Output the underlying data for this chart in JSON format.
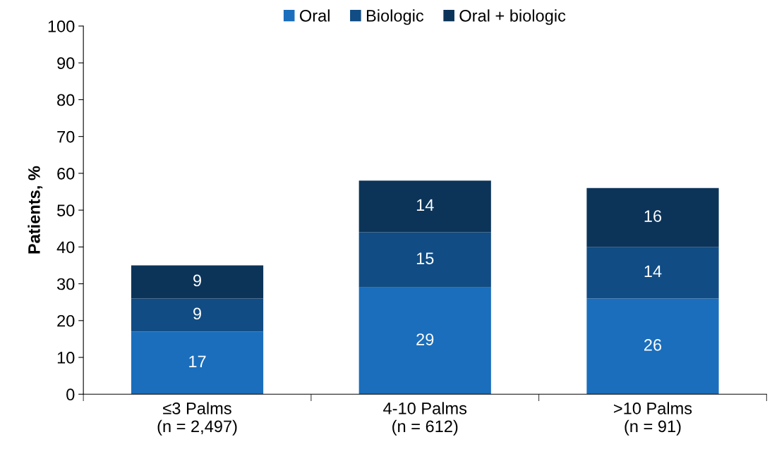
{
  "chart_data": {
    "type": "bar",
    "stacked": true,
    "ylabel": "Patients, %",
    "categories": [
      "≤3 Palms\n(n = 2,497)",
      "4-10 Palms\n(n = 612)",
      ">10 Palms\n(n = 91)"
    ],
    "series": [
      {
        "name": "Oral",
        "color": "#1a6ebc",
        "values": [
          17,
          29,
          26
        ]
      },
      {
        "name": "Biologic",
        "color": "#114c84",
        "values": [
          9,
          15,
          14
        ]
      },
      {
        "name": "Oral + biologic",
        "color": "#0c3459",
        "values": [
          9,
          14,
          16
        ]
      }
    ],
    "ylim": [
      0,
      100
    ],
    "yticks": [
      0,
      10,
      20,
      30,
      40,
      50,
      60,
      70,
      80,
      90,
      100
    ],
    "data_labels": true,
    "legend": "top",
    "grid": false
  }
}
